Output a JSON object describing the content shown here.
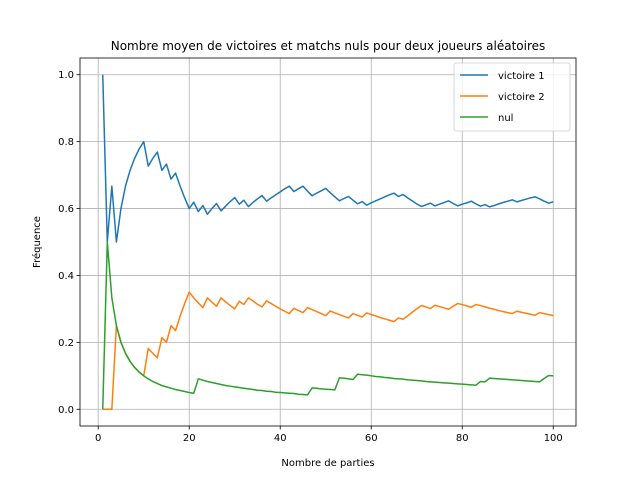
{
  "chart_data": {
    "type": "line",
    "title": "Nombre moyen de victoires et matchs nuls pour deux joueurs aléatoires",
    "xlabel": "Nombre de parties",
    "ylabel": "Fréquence",
    "xlim": [
      -4,
      105
    ],
    "ylim": [
      -0.05,
      1.05
    ],
    "xticks": [
      0,
      20,
      40,
      60,
      80,
      100
    ],
    "yticks": [
      0.0,
      0.2,
      0.4,
      0.6,
      0.8,
      1.0
    ],
    "xtick_labels": [
      "0",
      "20",
      "40",
      "60",
      "80",
      "100"
    ],
    "ytick_labels": [
      "0.0",
      "0.2",
      "0.4",
      "0.6",
      "0.8",
      "1.0"
    ],
    "grid": true,
    "legend_position": "top-right",
    "series": [
      {
        "name": "victoire 1",
        "color": "#1f77b4",
        "points": [
          [
            1,
            1.0
          ],
          [
            2,
            0.5
          ],
          [
            3,
            0.667
          ],
          [
            4,
            0.5
          ],
          [
            5,
            0.6
          ],
          [
            6,
            0.667
          ],
          [
            7,
            0.714
          ],
          [
            8,
            0.75
          ],
          [
            9,
            0.778
          ],
          [
            10,
            0.8
          ],
          [
            11,
            0.727
          ],
          [
            12,
            0.75
          ],
          [
            13,
            0.769
          ],
          [
            14,
            0.714
          ],
          [
            15,
            0.733
          ],
          [
            16,
            0.688
          ],
          [
            17,
            0.706
          ],
          [
            18,
            0.667
          ],
          [
            19,
            0.632
          ],
          [
            20,
            0.6
          ],
          [
            21,
            0.619
          ],
          [
            22,
            0.591
          ],
          [
            23,
            0.609
          ],
          [
            24,
            0.583
          ],
          [
            25,
            0.6
          ],
          [
            26,
            0.615
          ],
          [
            27,
            0.593
          ],
          [
            28,
            0.607
          ],
          [
            29,
            0.621
          ],
          [
            30,
            0.633
          ],
          [
            31,
            0.613
          ],
          [
            32,
            0.625
          ],
          [
            33,
            0.606
          ],
          [
            34,
            0.618
          ],
          [
            35,
            0.629
          ],
          [
            36,
            0.639
          ],
          [
            37,
            0.622
          ],
          [
            38,
            0.632
          ],
          [
            39,
            0.641
          ],
          [
            40,
            0.65
          ],
          [
            41,
            0.659
          ],
          [
            42,
            0.667
          ],
          [
            43,
            0.651
          ],
          [
            44,
            0.659
          ],
          [
            45,
            0.667
          ],
          [
            46,
            0.652
          ],
          [
            47,
            0.638
          ],
          [
            48,
            0.646
          ],
          [
            49,
            0.653
          ],
          [
            50,
            0.66
          ],
          [
            51,
            0.647
          ],
          [
            52,
            0.635
          ],
          [
            53,
            0.623
          ],
          [
            54,
            0.63
          ],
          [
            55,
            0.636
          ],
          [
            56,
            0.625
          ],
          [
            57,
            0.614
          ],
          [
            58,
            0.621
          ],
          [
            59,
            0.61
          ],
          [
            60,
            0.617
          ],
          [
            61,
            0.623
          ],
          [
            62,
            0.629
          ],
          [
            63,
            0.635
          ],
          [
            64,
            0.641
          ],
          [
            65,
            0.646
          ],
          [
            66,
            0.636
          ],
          [
            67,
            0.642
          ],
          [
            68,
            0.632
          ],
          [
            69,
            0.623
          ],
          [
            70,
            0.614
          ],
          [
            71,
            0.606
          ],
          [
            72,
            0.611
          ],
          [
            73,
            0.616
          ],
          [
            74,
            0.608
          ],
          [
            75,
            0.613
          ],
          [
            76,
            0.618
          ],
          [
            77,
            0.623
          ],
          [
            78,
            0.615
          ],
          [
            79,
            0.608
          ],
          [
            80,
            0.613
          ],
          [
            81,
            0.617
          ],
          [
            82,
            0.622
          ],
          [
            83,
            0.614
          ],
          [
            84,
            0.607
          ],
          [
            85,
            0.612
          ],
          [
            86,
            0.605
          ],
          [
            87,
            0.609
          ],
          [
            88,
            0.614
          ],
          [
            89,
            0.618
          ],
          [
            90,
            0.622
          ],
          [
            91,
            0.626
          ],
          [
            92,
            0.62
          ],
          [
            93,
            0.624
          ],
          [
            94,
            0.628
          ],
          [
            95,
            0.632
          ],
          [
            96,
            0.635
          ],
          [
            97,
            0.629
          ],
          [
            98,
            0.622
          ],
          [
            99,
            0.616
          ],
          [
            100,
            0.62
          ]
        ]
      },
      {
        "name": "victoire 2",
        "color": "#ff7f0e",
        "points": [
          [
            1,
            0.0
          ],
          [
            2,
            0.0
          ],
          [
            3,
            0.0
          ],
          [
            4,
            0.25
          ],
          [
            5,
            0.2
          ],
          [
            6,
            0.167
          ],
          [
            7,
            0.143
          ],
          [
            8,
            0.125
          ],
          [
            9,
            0.111
          ],
          [
            10,
            0.1
          ],
          [
            11,
            0.182
          ],
          [
            12,
            0.167
          ],
          [
            13,
            0.154
          ],
          [
            14,
            0.214
          ],
          [
            15,
            0.2
          ],
          [
            16,
            0.25
          ],
          [
            17,
            0.235
          ],
          [
            18,
            0.278
          ],
          [
            19,
            0.316
          ],
          [
            20,
            0.35
          ],
          [
            21,
            0.333
          ],
          [
            22,
            0.318
          ],
          [
            23,
            0.304
          ],
          [
            24,
            0.333
          ],
          [
            25,
            0.32
          ],
          [
            26,
            0.308
          ],
          [
            27,
            0.333
          ],
          [
            28,
            0.321
          ],
          [
            29,
            0.31
          ],
          [
            30,
            0.3
          ],
          [
            31,
            0.323
          ],
          [
            32,
            0.313
          ],
          [
            33,
            0.333
          ],
          [
            34,
            0.324
          ],
          [
            35,
            0.314
          ],
          [
            36,
            0.306
          ],
          [
            37,
            0.324
          ],
          [
            38,
            0.316
          ],
          [
            39,
            0.308
          ],
          [
            40,
            0.3
          ],
          [
            41,
            0.293
          ],
          [
            42,
            0.286
          ],
          [
            43,
            0.302
          ],
          [
            44,
            0.295
          ],
          [
            45,
            0.289
          ],
          [
            46,
            0.304
          ],
          [
            47,
            0.298
          ],
          [
            48,
            0.292
          ],
          [
            49,
            0.286
          ],
          [
            50,
            0.28
          ],
          [
            51,
            0.294
          ],
          [
            52,
            0.288
          ],
          [
            53,
            0.283
          ],
          [
            54,
            0.278
          ],
          [
            55,
            0.273
          ],
          [
            56,
            0.286
          ],
          [
            57,
            0.281
          ],
          [
            58,
            0.276
          ],
          [
            59,
            0.288
          ],
          [
            60,
            0.283
          ],
          [
            61,
            0.279
          ],
          [
            62,
            0.274
          ],
          [
            63,
            0.27
          ],
          [
            64,
            0.266
          ],
          [
            65,
            0.262
          ],
          [
            66,
            0.273
          ],
          [
            67,
            0.269
          ],
          [
            68,
            0.279
          ],
          [
            69,
            0.29
          ],
          [
            70,
            0.3
          ],
          [
            71,
            0.31
          ],
          [
            72,
            0.306
          ],
          [
            73,
            0.301
          ],
          [
            74,
            0.311
          ],
          [
            75,
            0.307
          ],
          [
            76,
            0.303
          ],
          [
            77,
            0.299
          ],
          [
            78,
            0.308
          ],
          [
            79,
            0.316
          ],
          [
            80,
            0.313
          ],
          [
            81,
            0.309
          ],
          [
            82,
            0.305
          ],
          [
            83,
            0.313
          ],
          [
            84,
            0.31
          ],
          [
            85,
            0.306
          ],
          [
            86,
            0.302
          ],
          [
            87,
            0.299
          ],
          [
            88,
            0.295
          ],
          [
            89,
            0.292
          ],
          [
            90,
            0.289
          ],
          [
            91,
            0.286
          ],
          [
            92,
            0.293
          ],
          [
            93,
            0.29
          ],
          [
            94,
            0.287
          ],
          [
            95,
            0.284
          ],
          [
            96,
            0.281
          ],
          [
            97,
            0.289
          ],
          [
            98,
            0.286
          ],
          [
            99,
            0.283
          ],
          [
            100,
            0.28
          ]
        ]
      },
      {
        "name": "nul",
        "color": "#2ca02c",
        "points": [
          [
            1,
            0.0
          ],
          [
            2,
            0.5
          ],
          [
            3,
            0.333
          ],
          [
            4,
            0.25
          ],
          [
            5,
            0.2
          ],
          [
            6,
            0.167
          ],
          [
            7,
            0.143
          ],
          [
            8,
            0.125
          ],
          [
            9,
            0.111
          ],
          [
            10,
            0.1
          ],
          [
            11,
            0.091
          ],
          [
            12,
            0.083
          ],
          [
            13,
            0.077
          ],
          [
            14,
            0.071
          ],
          [
            15,
            0.067
          ],
          [
            16,
            0.063
          ],
          [
            17,
            0.059
          ],
          [
            18,
            0.056
          ],
          [
            19,
            0.053
          ],
          [
            20,
            0.05
          ],
          [
            21,
            0.048
          ],
          [
            22,
            0.091
          ],
          [
            23,
            0.087
          ],
          [
            24,
            0.083
          ],
          [
            25,
            0.08
          ],
          [
            26,
            0.077
          ],
          [
            27,
            0.074
          ],
          [
            28,
            0.071
          ],
          [
            29,
            0.069
          ],
          [
            30,
            0.067
          ],
          [
            31,
            0.065
          ],
          [
            32,
            0.063
          ],
          [
            33,
            0.061
          ],
          [
            34,
            0.059
          ],
          [
            35,
            0.057
          ],
          [
            36,
            0.056
          ],
          [
            37,
            0.054
          ],
          [
            38,
            0.053
          ],
          [
            39,
            0.051
          ],
          [
            40,
            0.05
          ],
          [
            41,
            0.049
          ],
          [
            42,
            0.048
          ],
          [
            43,
            0.047
          ],
          [
            44,
            0.045
          ],
          [
            45,
            0.044
          ],
          [
            46,
            0.043
          ],
          [
            47,
            0.064
          ],
          [
            48,
            0.063
          ],
          [
            49,
            0.061
          ],
          [
            50,
            0.06
          ],
          [
            51,
            0.059
          ],
          [
            52,
            0.058
          ],
          [
            53,
            0.094
          ],
          [
            54,
            0.093
          ],
          [
            55,
            0.091
          ],
          [
            56,
            0.089
          ],
          [
            57,
            0.105
          ],
          [
            58,
            0.103
          ],
          [
            59,
            0.102
          ],
          [
            60,
            0.1
          ],
          [
            61,
            0.098
          ],
          [
            62,
            0.097
          ],
          [
            63,
            0.095
          ],
          [
            64,
            0.094
          ],
          [
            65,
            0.092
          ],
          [
            66,
            0.091
          ],
          [
            67,
            0.09
          ],
          [
            68,
            0.088
          ],
          [
            69,
            0.087
          ],
          [
            70,
            0.086
          ],
          [
            71,
            0.085
          ],
          [
            72,
            0.083
          ],
          [
            73,
            0.082
          ],
          [
            74,
            0.081
          ],
          [
            75,
            0.08
          ],
          [
            76,
            0.079
          ],
          [
            77,
            0.078
          ],
          [
            78,
            0.077
          ],
          [
            79,
            0.076
          ],
          [
            80,
            0.075
          ],
          [
            81,
            0.074
          ],
          [
            82,
            0.073
          ],
          [
            83,
            0.072
          ],
          [
            84,
            0.083
          ],
          [
            85,
            0.082
          ],
          [
            86,
            0.093
          ],
          [
            87,
            0.092
          ],
          [
            88,
            0.091
          ],
          [
            89,
            0.09
          ],
          [
            90,
            0.089
          ],
          [
            91,
            0.088
          ],
          [
            92,
            0.087
          ],
          [
            93,
            0.086
          ],
          [
            94,
            0.085
          ],
          [
            95,
            0.084
          ],
          [
            96,
            0.083
          ],
          [
            97,
            0.082
          ],
          [
            98,
            0.092
          ],
          [
            99,
            0.101
          ],
          [
            100,
            0.1
          ]
        ]
      }
    ]
  }
}
